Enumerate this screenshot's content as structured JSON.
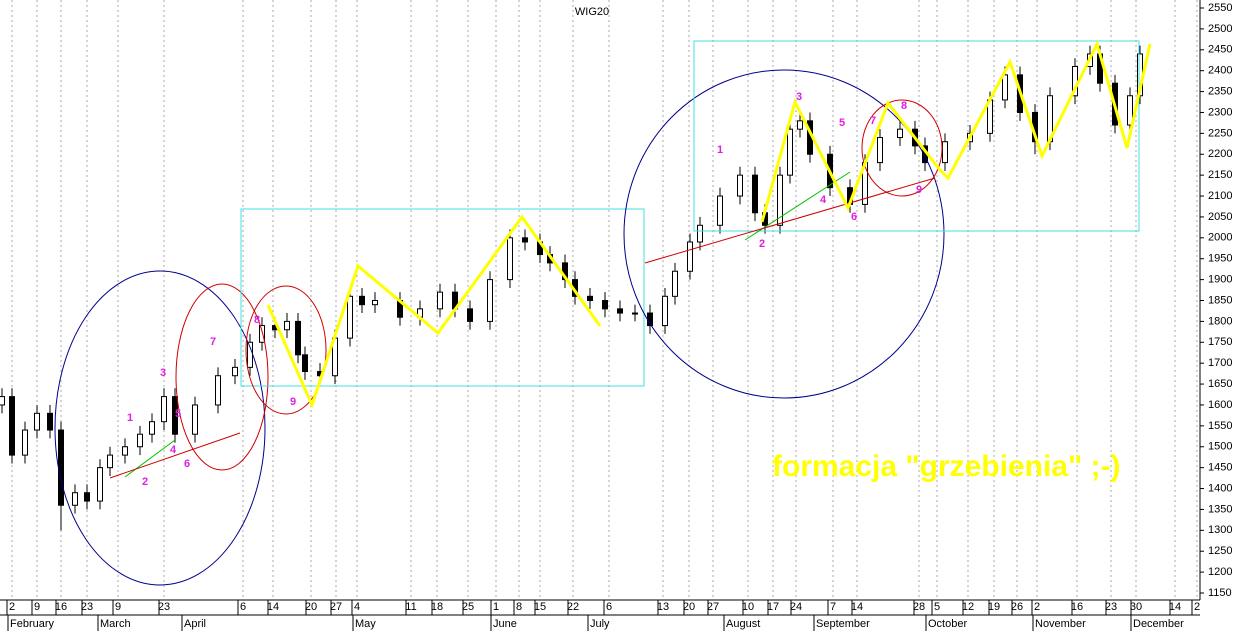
{
  "chart_data": {
    "type": "candlestick",
    "title": "WIG20",
    "x": [
      0.4,
      2.4,
      5,
      7.4,
      10,
      12.2,
      15,
      17.4,
      20,
      22,
      25,
      28,
      30.4,
      32.8,
      35,
      39,
      43.6,
      47,
      50,
      52.4,
      55,
      57.4,
      59.6,
      61,
      64,
      67,
      70,
      72.4,
      75,
      80,
      84,
      88,
      91,
      94,
      98,
      102,
      105,
      108,
      110,
      113,
      115,
      118,
      121,
      124,
      127,
      130,
      133,
      135,
      138,
      140,
      144,
      148,
      151,
      153,
      156,
      158,
      160,
      162,
      166,
      170,
      173,
      176,
      180,
      183,
      185,
      189,
      194,
      198,
      201,
      204,
      207,
      210,
      215,
      218,
      220,
      223,
      226,
      228
    ],
    "open": [
      1600,
      1620,
      1480,
      1540,
      1580,
      1540,
      1360,
      1390,
      1370,
      1450,
      1480,
      1500,
      1530,
      1560,
      1620,
      1530,
      1600,
      1670,
      1690,
      1750,
      1790,
      1780,
      1800,
      1720,
      1680,
      1670,
      1760,
      1860,
      1840,
      1850,
      1810,
      1830,
      1870,
      1830,
      1800,
      1900,
      2000,
      1990,
      1960,
      1940,
      1900,
      1860,
      1850,
      1830,
      1820,
      1820,
      1790,
      1860,
      1920,
      1990,
      2030,
      2100,
      2150,
      2060,
      2030,
      2150,
      2260,
      2280,
      2200,
      2120,
      2080,
      2180,
      2240,
      2260,
      2220,
      2180,
      2230,
      2250,
      2330,
      2390,
      2300,
      2230,
      2340,
      2410,
      2440,
      2370,
      2270,
      2340
    ],
    "high": [
      1640,
      1640,
      1560,
      1600,
      1600,
      1560,
      1410,
      1410,
      1470,
      1500,
      1520,
      1550,
      1580,
      1640,
      1640,
      1620,
      1690,
      1710,
      1770,
      1810,
      1810,
      1820,
      1820,
      1740,
      1700,
      1780,
      1880,
      1880,
      1870,
      1870,
      1850,
      1890,
      1890,
      1850,
      1920,
      2020,
      2020,
      2010,
      1980,
      1960,
      1920,
      1880,
      1870,
      1850,
      1840,
      1840,
      1880,
      1940,
      2010,
      2050,
      2120,
      2170,
      2170,
      2080,
      2170,
      2280,
      2300,
      2300,
      2220,
      2140,
      2200,
      2260,
      2280,
      2280,
      2240,
      2250,
      2270,
      2350,
      2410,
      2410,
      2320,
      2360,
      2430,
      2460,
      2460,
      2390,
      2360,
      2460
    ],
    "low": [
      1580,
      1460,
      1460,
      1520,
      1520,
      1300,
      1340,
      1350,
      1350,
      1430,
      1460,
      1480,
      1510,
      1540,
      1510,
      1510,
      1580,
      1650,
      1670,
      1730,
      1760,
      1760,
      1700,
      1660,
      1650,
      1650,
      1740,
      1820,
      1820,
      1790,
      1790,
      1810,
      1810,
      1780,
      1780,
      1880,
      1970,
      1940,
      1920,
      1880,
      1840,
      1830,
      1810,
      1800,
      1800,
      1770,
      1770,
      1840,
      1900,
      1970,
      2010,
      2080,
      2040,
      2010,
      2010,
      2130,
      2240,
      2180,
      2100,
      2060,
      2060,
      2160,
      2220,
      2200,
      2160,
      2160,
      2210,
      2230,
      2310,
      2280,
      2200,
      2210,
      2320,
      2390,
      2350,
      2250,
      2250,
      2320
    ],
    "close": [
      1620,
      1480,
      1540,
      1580,
      1540,
      1360,
      1390,
      1370,
      1450,
      1480,
      1500,
      1530,
      1560,
      1620,
      1530,
      1600,
      1670,
      1690,
      1750,
      1790,
      1780,
      1800,
      1720,
      1680,
      1670,
      1760,
      1860,
      1840,
      1850,
      1810,
      1830,
      1870,
      1830,
      1800,
      1900,
      2000,
      1990,
      1960,
      1940,
      1900,
      1860,
      1850,
      1830,
      1820,
      1820,
      1790,
      1860,
      1920,
      1990,
      2030,
      2100,
      2150,
      2060,
      2030,
      2150,
      2260,
      2280,
      2200,
      2120,
      2080,
      2180,
      2240,
      2260,
      2220,
      2180,
      2230,
      2250,
      2330,
      2390,
      2300,
      2230,
      2340,
      2410,
      2440,
      2370,
      2270,
      2340,
      2440
    ],
    "up_color": "#ffffff",
    "down_color": "#000000",
    "xlim": [
      0,
      240
    ],
    "ylim": [
      1150,
      2550
    ],
    "yticks": [
      1150,
      1200,
      1250,
      1300,
      1350,
      1400,
      1450,
      1500,
      1550,
      1600,
      1650,
      1700,
      1750,
      1800,
      1850,
      1900,
      1950,
      2000,
      2050,
      2100,
      2150,
      2200,
      2250,
      2300,
      2350,
      2400,
      2450,
      2500,
      2550
    ],
    "xticks": [
      {
        "value": 2.4,
        "label": "2"
      },
      {
        "value": 7.4,
        "label": "9"
      },
      {
        "value": 12.2,
        "label": "16"
      },
      {
        "value": 17.4,
        "label": "23"
      },
      {
        "value": 23.6,
        "label": "9"
      },
      {
        "value": 32.8,
        "label": "23"
      },
      {
        "value": 48.6,
        "label": "6"
      },
      {
        "value": 54.6,
        "label": "14"
      },
      {
        "value": 62.2,
        "label": "20"
      },
      {
        "value": 67.2,
        "label": "27"
      },
      {
        "value": 71.4,
        "label": "4"
      },
      {
        "value": 82.2,
        "label": "11"
      },
      {
        "value": 87.4,
        "label": "18"
      },
      {
        "value": 93.6,
        "label": "25"
      },
      {
        "value": 99.2,
        "label": "1"
      },
      {
        "value": 103.8,
        "label": "8"
      },
      {
        "value": 108,
        "label": "15"
      },
      {
        "value": 114.6,
        "label": "22"
      },
      {
        "value": 121.8,
        "label": "6"
      },
      {
        "value": 132.6,
        "label": "13"
      },
      {
        "value": 137.8,
        "label": "20"
      },
      {
        "value": 142.6,
        "label": "27"
      },
      {
        "value": 149.6,
        "label": "10"
      },
      {
        "value": 154.6,
        "label": "17"
      },
      {
        "value": 159.2,
        "label": "24"
      },
      {
        "value": 166.6,
        "label": "7"
      },
      {
        "value": 171.4,
        "label": "14"
      },
      {
        "value": 183.8,
        "label": "28"
      },
      {
        "value": 187.4,
        "label": "5"
      },
      {
        "value": 193.6,
        "label": "12"
      },
      {
        "value": 198.8,
        "label": "19"
      },
      {
        "value": 203.4,
        "label": "26"
      },
      {
        "value": 207.4,
        "label": "2"
      },
      {
        "value": 215.4,
        "label": "16"
      },
      {
        "value": 222.2,
        "label": "23"
      },
      {
        "value": 227.2,
        "label": "30"
      },
      {
        "value": 235,
        "label": "14"
      },
      {
        "value": 239.4,
        "label": "2"
      }
    ],
    "month_ticks": [
      {
        "value": 1.6,
        "label": "February"
      },
      {
        "value": 19.6,
        "label": "March"
      },
      {
        "value": 36.4,
        "label": "April"
      },
      {
        "value": 70.6,
        "label": "May"
      },
      {
        "value": 98.2,
        "label": "June"
      },
      {
        "value": 117.6,
        "label": "July"
      },
      {
        "value": 144.8,
        "label": "August"
      },
      {
        "value": 162.8,
        "label": "September"
      },
      {
        "value": 185.2,
        "label": "October"
      },
      {
        "value": 206.6,
        "label": "November"
      },
      {
        "value": 226.2,
        "label": "December"
      }
    ],
    "grid": true,
    "annotations": [
      "1",
      "2",
      "3",
      "4",
      "5",
      "6",
      "7",
      "8",
      "9",
      "1",
      "2",
      "3",
      "4",
      "5",
      "6",
      "7",
      "8",
      "9",
      "formacja \"grzebienia\" ;-)"
    ]
  }
}
